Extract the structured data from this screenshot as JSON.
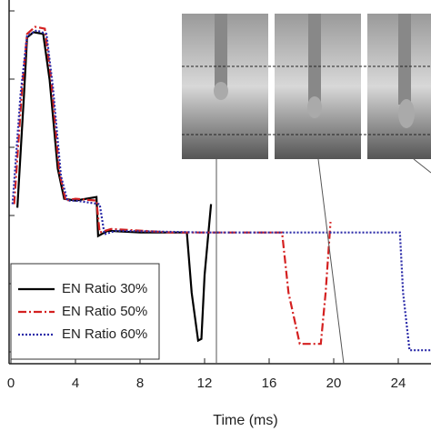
{
  "chart_data": {
    "type": "line",
    "x_label": "Time (ms)",
    "xlim": [
      0,
      26
    ],
    "xticks": [
      0,
      4,
      8,
      12,
      16,
      20,
      24
    ],
    "ylim": [
      0,
      10
    ],
    "legend": "lower left",
    "series": [
      {
        "name": "EN Ratio 30%",
        "color": "#000000",
        "style": "solid",
        "x": [
          0.4,
          0.8,
          1.0,
          1.4,
          2.0,
          2.4,
          2.9,
          3.3,
          4.0,
          5.3,
          5.4,
          6.0,
          8.0,
          10.9,
          11.2,
          11.6,
          11.8,
          12.0,
          12.4
        ],
        "values": [
          4.4,
          7.5,
          9.2,
          9.35,
          9.3,
          8.0,
          5.5,
          4.65,
          4.6,
          4.7,
          3.6,
          3.75,
          3.7,
          3.7,
          2.0,
          0.65,
          0.7,
          2.5,
          4.5
        ]
      },
      {
        "name": "EN Ratio 50%",
        "color": "#d42020",
        "style": "dashdot",
        "x": [
          0.2,
          0.7,
          1.0,
          1.5,
          2.1,
          2.5,
          3.0,
          3.4,
          4.0,
          5.3,
          5.5,
          6.2,
          10.0,
          16.8,
          17.2,
          17.9,
          19.2,
          19.5,
          19.8
        ],
        "values": [
          4.5,
          7.8,
          9.3,
          9.5,
          9.45,
          8.0,
          5.4,
          4.6,
          4.65,
          4.6,
          3.7,
          3.8,
          3.7,
          3.7,
          2.0,
          0.56,
          0.56,
          2.0,
          4.0
        ]
      },
      {
        "name": "EN Ratio 60%",
        "color": "#2a2aa8",
        "style": "dotted",
        "x": [
          0.1,
          0.6,
          1.0,
          1.6,
          2.2,
          2.6,
          3.1,
          3.5,
          4.0,
          5.5,
          5.8,
          6.5,
          12.0,
          24.1,
          24.3,
          24.7,
          26.0
        ],
        "values": [
          4.5,
          7.6,
          9.25,
          9.4,
          9.3,
          7.8,
          5.3,
          4.6,
          4.6,
          4.5,
          3.65,
          3.75,
          3.7,
          3.7,
          2.0,
          0.38,
          0.38
        ]
      }
    ]
  }
}
